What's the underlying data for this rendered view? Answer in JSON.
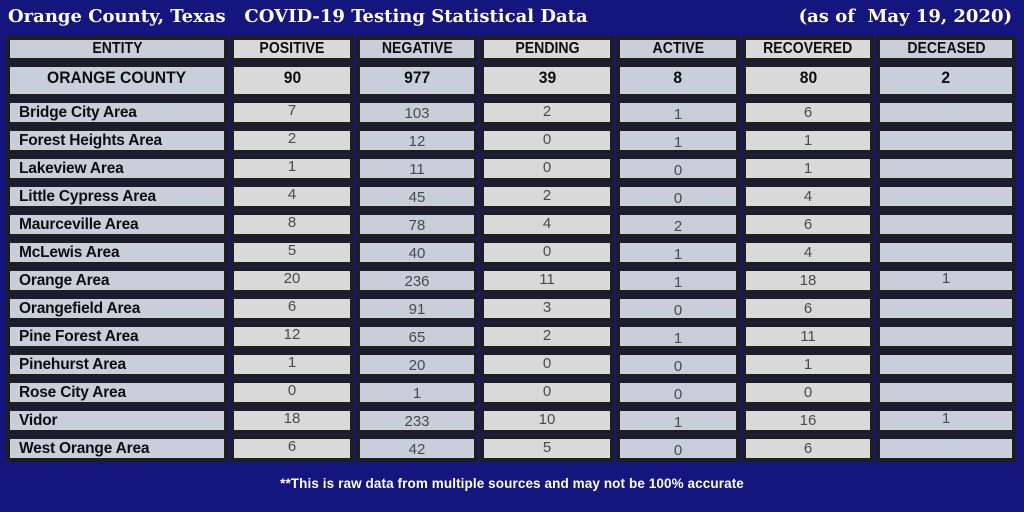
{
  "title": {
    "left": "Orange County, Texas   COVID-19 Testing Statistical Data",
    "right": "(as of  May 19, 2020)"
  },
  "footer": {
    "note": "**This is raw data from multiple sources and may not be 100% accurate"
  },
  "colors": {
    "background_navy": "#15157e",
    "border_black": "#1e1e1e",
    "cell_blue_gray": "#c8cfdb",
    "cell_light_gray": "#d9d9d9",
    "title_text": "#ffffff",
    "label_text": "#0d0d0d",
    "number_text": "#4a4a4a"
  },
  "chart_data": {
    "type": "table",
    "title": "Orange County, Texas COVID-19 Testing Statistical Data",
    "as_of": "May 19, 2020",
    "columns": [
      "ENTITY",
      "POSITIVE",
      "NEGATIVE",
      "PENDING",
      "ACTIVE",
      "RECOVERED",
      "DECEASED"
    ],
    "county_row": {
      "entity": "ORANGE COUNTY",
      "values": [
        90,
        977,
        39,
        8,
        80,
        2
      ]
    },
    "area_rows": [
      {
        "entity": "Bridge City Area",
        "values": [
          7,
          103,
          2,
          1,
          6,
          null
        ]
      },
      {
        "entity": "Forest Heights Area",
        "values": [
          2,
          12,
          0,
          1,
          1,
          null
        ]
      },
      {
        "entity": "Lakeview Area",
        "values": [
          1,
          11,
          0,
          0,
          1,
          null
        ]
      },
      {
        "entity": "Little Cypress Area",
        "values": [
          4,
          45,
          2,
          0,
          4,
          null
        ]
      },
      {
        "entity": "Maurceville Area",
        "values": [
          8,
          78,
          4,
          2,
          6,
          null
        ]
      },
      {
        "entity": "McLewis Area",
        "values": [
          5,
          40,
          0,
          1,
          4,
          null
        ]
      },
      {
        "entity": "Orange Area",
        "values": [
          20,
          236,
          11,
          1,
          18,
          1
        ]
      },
      {
        "entity": "Orangefield Area",
        "values": [
          6,
          91,
          3,
          0,
          6,
          null
        ]
      },
      {
        "entity": "Pine Forest Area",
        "values": [
          12,
          65,
          2,
          1,
          11,
          null
        ]
      },
      {
        "entity": "Pinehurst Area",
        "values": [
          1,
          20,
          0,
          0,
          1,
          null
        ]
      },
      {
        "entity": "Rose City Area",
        "values": [
          0,
          1,
          0,
          0,
          0,
          null
        ]
      },
      {
        "entity": "Vidor",
        "values": [
          18,
          233,
          10,
          1,
          16,
          1
        ]
      },
      {
        "entity": "West Orange Area",
        "values": [
          6,
          42,
          5,
          0,
          6,
          null
        ]
      }
    ]
  }
}
